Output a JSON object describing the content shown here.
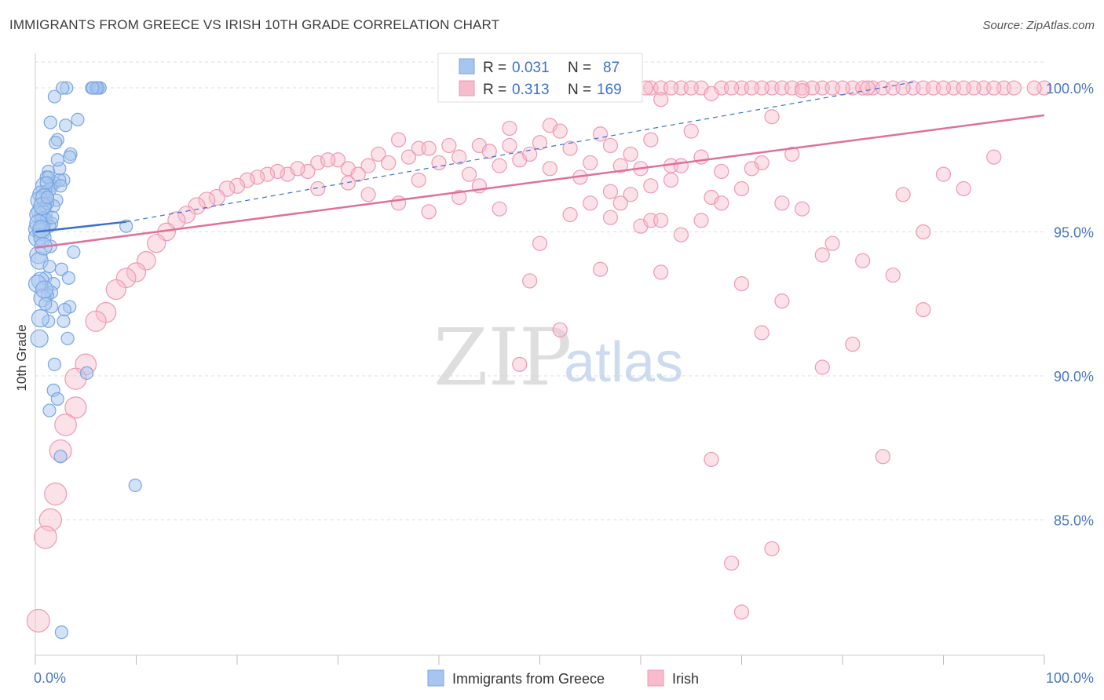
{
  "header": {
    "title": "IMMIGRANTS FROM GREECE VS IRISH 10TH GRADE CORRELATION CHART",
    "source": "Source: ZipAtlas.com"
  },
  "watermark": {
    "zip": "ZIP",
    "atlas": "atlas"
  },
  "colors": {
    "blue_fill": "#a7c6ef",
    "blue_stroke": "#7aa6e0",
    "blue_line": "#3a72cf",
    "pink_fill": "#f6bccd",
    "pink_stroke": "#ee99b4",
    "pink_line": "#e0709a",
    "grid": "#dddddd",
    "tick_text": "#4a78c2"
  },
  "legend": {
    "r_label": "R =",
    "n_label": "N =",
    "entries": [
      {
        "r": "0.031",
        "n": "87"
      },
      {
        "r": "0.313",
        "n": "169"
      }
    ]
  },
  "chart_data": {
    "type": "scatter",
    "title": "IMMIGRANTS FROM GREECE VS IRISH 10TH GRADE CORRELATION CHART",
    "xlabel": "",
    "ylabel": "10th Grade",
    "xlim": [
      0,
      100
    ],
    "ylim": [
      80.3,
      101.2
    ],
    "x_tick_labels": [
      "0.0%",
      "100.0%"
    ],
    "y_ticks": [
      {
        "value": 100,
        "label": "100.0%"
      },
      {
        "value": 95,
        "label": "95.0%"
      },
      {
        "value": 90,
        "label": "90.0%"
      },
      {
        "value": 85,
        "label": "85.0%"
      }
    ],
    "series": [
      {
        "name": "Immigrants from Greece",
        "color": "blue",
        "r": 0.031,
        "n": 87,
        "trend": {
          "x": [
            0,
            9
          ],
          "y": [
            95.0,
            95.35
          ]
        },
        "trend_dashed": {
          "x": [
            9,
            87
          ],
          "y": [
            95.35,
            100.2
          ]
        },
        "points": [
          [
            6.1,
            100
          ],
          [
            6.4,
            100
          ],
          [
            5.6,
            100
          ],
          [
            6.0,
            100
          ],
          [
            3.1,
            100
          ],
          [
            2.7,
            100
          ],
          [
            6.2,
            100
          ],
          [
            5.7,
            100
          ],
          [
            1.9,
            99.7
          ],
          [
            4.2,
            98.9
          ],
          [
            3.0,
            98.7
          ],
          [
            1.5,
            98.8
          ],
          [
            2.2,
            98.2
          ],
          [
            2.0,
            98.1
          ],
          [
            3.5,
            97.7
          ],
          [
            3.4,
            97.6
          ],
          [
            1.3,
            97.1
          ],
          [
            1.1,
            96.9
          ],
          [
            2.8,
            96.8
          ],
          [
            1.9,
            96.7
          ],
          [
            1.6,
            96.6
          ],
          [
            0.9,
            96.6
          ],
          [
            2.4,
            96.8
          ],
          [
            1.0,
            96.4
          ],
          [
            1.5,
            96.5
          ],
          [
            0.6,
            96.3
          ],
          [
            0.4,
            96.1
          ],
          [
            2.1,
            96.1
          ],
          [
            1.8,
            95.9
          ],
          [
            1.0,
            95.9
          ],
          [
            0.5,
            95.7
          ],
          [
            0.8,
            95.6
          ],
          [
            0.3,
            95.6
          ],
          [
            0.8,
            95.4
          ],
          [
            1.1,
            95.4
          ],
          [
            1.6,
            95.3
          ],
          [
            1.4,
            95.2
          ],
          [
            0.2,
            95.1
          ],
          [
            0.6,
            95.0
          ],
          [
            0.2,
            94.8
          ],
          [
            0.7,
            94.8
          ],
          [
            1.5,
            94.5
          ],
          [
            3.8,
            94.3
          ],
          [
            0.3,
            94.2
          ],
          [
            2.6,
            93.7
          ],
          [
            1.0,
            93.4
          ],
          [
            0.5,
            93.3
          ],
          [
            0.2,
            93.2
          ],
          [
            3.3,
            93.4
          ],
          [
            1.8,
            93.2
          ],
          [
            1.6,
            92.9
          ],
          [
            1.2,
            92.8
          ],
          [
            0.7,
            92.7
          ],
          [
            3.4,
            92.4
          ],
          [
            2.9,
            92.3
          ],
          [
            1.6,
            92.4
          ],
          [
            2.8,
            91.9
          ],
          [
            1.3,
            91.9
          ],
          [
            3.2,
            91.3
          ],
          [
            0.4,
            91.3
          ],
          [
            1.9,
            90.4
          ],
          [
            5.1,
            90.1
          ],
          [
            1.8,
            89.5
          ],
          [
            2.2,
            89.2
          ],
          [
            1.4,
            88.8
          ],
          [
            2.5,
            87.2
          ],
          [
            9.9,
            86.2
          ],
          [
            2.6,
            81.1
          ],
          [
            9.0,
            95.2
          ],
          [
            1.2,
            96.0
          ],
          [
            0.9,
            96.2
          ],
          [
            0.3,
            95.3
          ],
          [
            1.3,
            96.9
          ],
          [
            2.4,
            97.2
          ],
          [
            1.1,
            96.7
          ],
          [
            0.7,
            95.9
          ],
          [
            1.7,
            95.5
          ],
          [
            0.4,
            94.0
          ],
          [
            0.9,
            93.0
          ],
          [
            2.2,
            97.5
          ],
          [
            2.5,
            96.6
          ],
          [
            1.2,
            96.2
          ],
          [
            0.6,
            95.1
          ],
          [
            0.8,
            94.5
          ],
          [
            1.4,
            93.8
          ],
          [
            1.0,
            92.5
          ],
          [
            0.5,
            92.0
          ]
        ]
      },
      {
        "name": "Irish",
        "color": "pink",
        "r": 0.313,
        "n": 169,
        "trend": {
          "x": [
            0,
            100
          ],
          "y": [
            94.45,
            99.05
          ]
        },
        "points": [
          [
            61,
            100
          ],
          [
            64,
            100
          ],
          [
            66,
            100
          ],
          [
            68,
            100
          ],
          [
            70,
            100
          ],
          [
            73,
            100
          ],
          [
            74,
            100
          ],
          [
            76,
            100
          ],
          [
            78,
            100
          ],
          [
            81,
            100
          ],
          [
            83,
            100
          ],
          [
            84,
            100
          ],
          [
            85,
            100
          ],
          [
            87,
            100
          ],
          [
            88,
            100
          ],
          [
            89,
            100
          ],
          [
            91,
            100
          ],
          [
            94,
            100
          ],
          [
            96,
            100
          ],
          [
            100,
            100
          ],
          [
            62,
            100
          ],
          [
            65,
            100
          ],
          [
            69,
            100
          ],
          [
            72,
            100
          ],
          [
            77,
            100
          ],
          [
            80,
            100
          ],
          [
            82,
            100
          ],
          [
            86,
            100
          ],
          [
            90,
            100
          ],
          [
            93,
            100
          ],
          [
            95,
            100
          ],
          [
            97,
            100
          ],
          [
            99,
            100
          ],
          [
            75,
            100
          ],
          [
            79,
            100
          ],
          [
            92,
            100
          ],
          [
            60.5,
            100
          ],
          [
            58,
            100
          ],
          [
            63,
            100
          ],
          [
            71,
            100
          ],
          [
            76,
            99.9
          ],
          [
            82.5,
            100
          ],
          [
            62,
            99.6
          ],
          [
            67,
            99.8
          ],
          [
            73,
            99.0
          ],
          [
            47,
            98.6
          ],
          [
            51,
            98.7
          ],
          [
            56,
            98.4
          ],
          [
            52,
            98.5
          ],
          [
            61,
            98.2
          ],
          [
            65,
            98.5
          ],
          [
            41,
            98.0
          ],
          [
            44,
            98.0
          ],
          [
            47,
            98.0
          ],
          [
            50,
            98.1
          ],
          [
            53,
            97.9
          ],
          [
            57,
            98.0
          ],
          [
            59,
            97.7
          ],
          [
            36,
            98.2
          ],
          [
            38,
            97.9
          ],
          [
            34,
            97.7
          ],
          [
            28,
            97.4
          ],
          [
            30,
            97.5
          ],
          [
            33,
            97.3
          ],
          [
            37,
            97.6
          ],
          [
            39,
            97.9
          ],
          [
            42,
            97.6
          ],
          [
            45,
            97.8
          ],
          [
            48,
            97.5
          ],
          [
            51,
            97.2
          ],
          [
            55,
            97.4
          ],
          [
            60,
            97.2
          ],
          [
            63,
            97.3
          ],
          [
            66,
            97.6
          ],
          [
            72,
            97.4
          ],
          [
            27,
            97.1
          ],
          [
            25,
            97.0
          ],
          [
            26,
            97.2
          ],
          [
            24,
            97.1
          ],
          [
            23,
            97.0
          ],
          [
            22,
            96.9
          ],
          [
            21,
            96.8
          ],
          [
            20,
            96.6
          ],
          [
            19,
            96.5
          ],
          [
            18,
            96.2
          ],
          [
            17,
            96.1
          ],
          [
            16,
            95.9
          ],
          [
            15,
            95.6
          ],
          [
            14,
            95.4
          ],
          [
            13,
            95.0
          ],
          [
            12,
            94.6
          ],
          [
            11,
            94.0
          ],
          [
            10,
            93.6
          ],
          [
            9,
            93.4
          ],
          [
            8,
            93.0
          ],
          [
            7,
            92.2
          ],
          [
            6,
            91.9
          ],
          [
            5,
            90.4
          ],
          [
            4,
            89.9
          ],
          [
            4,
            88.9
          ],
          [
            3,
            88.3
          ],
          [
            2.5,
            87.4
          ],
          [
            2,
            85.9
          ],
          [
            1.5,
            85.0
          ],
          [
            1,
            84.4
          ],
          [
            0.3,
            81.5
          ],
          [
            29,
            97.5
          ],
          [
            31,
            97.2
          ],
          [
            32,
            97.0
          ],
          [
            35,
            97.4
          ],
          [
            40,
            97.4
          ],
          [
            43,
            97.0
          ],
          [
            46,
            97.3
          ],
          [
            49,
            97.7
          ],
          [
            54,
            96.9
          ],
          [
            58,
            97.3
          ],
          [
            64,
            97.3
          ],
          [
            68,
            97.1
          ],
          [
            71,
            97.2
          ],
          [
            75,
            97.7
          ],
          [
            95,
            97.6
          ],
          [
            55,
            96.0
          ],
          [
            57,
            96.4
          ],
          [
            59,
            96.3
          ],
          [
            61,
            96.6
          ],
          [
            63,
            96.8
          ],
          [
            66,
            95.4
          ],
          [
            67,
            96.2
          ],
          [
            60,
            95.2
          ],
          [
            61,
            95.4
          ],
          [
            62,
            95.4
          ],
          [
            70,
            96.5
          ],
          [
            78,
            94.2
          ],
          [
            79,
            94.6
          ],
          [
            74,
            92.6
          ],
          [
            72,
            91.5
          ],
          [
            81,
            91.1
          ],
          [
            49,
            93.3
          ],
          [
            52,
            91.6
          ],
          [
            56,
            93.7
          ],
          [
            62,
            93.6
          ],
          [
            67,
            87.1
          ],
          [
            69,
            83.5
          ],
          [
            70,
            81.8
          ],
          [
            73,
            84.0
          ],
          [
            84,
            87.2
          ],
          [
            85,
            93.5
          ],
          [
            50,
            94.6
          ],
          [
            38,
            96.8
          ],
          [
            42,
            96.2
          ],
          [
            46,
            95.8
          ],
          [
            53,
            95.6
          ],
          [
            48,
            90.4
          ],
          [
            78,
            90.3
          ],
          [
            88,
            95.0
          ],
          [
            44,
            96.6
          ],
          [
            36,
            96.0
          ],
          [
            39,
            95.7
          ],
          [
            33,
            96.3
          ],
          [
            31,
            96.7
          ],
          [
            28,
            96.5
          ],
          [
            57,
            95.5
          ],
          [
            64,
            94.9
          ],
          [
            68,
            96.0
          ],
          [
            76,
            95.8
          ],
          [
            86,
            96.3
          ],
          [
            90,
            97.0
          ],
          [
            92,
            96.5
          ],
          [
            70,
            93.2
          ],
          [
            82,
            94.0
          ],
          [
            88,
            92.3
          ],
          [
            74,
            96.0
          ],
          [
            58,
            96.0
          ]
        ]
      }
    ]
  },
  "bottom_legend": [
    {
      "label": "Immigrants from Greece"
    },
    {
      "label": "Irish"
    }
  ]
}
